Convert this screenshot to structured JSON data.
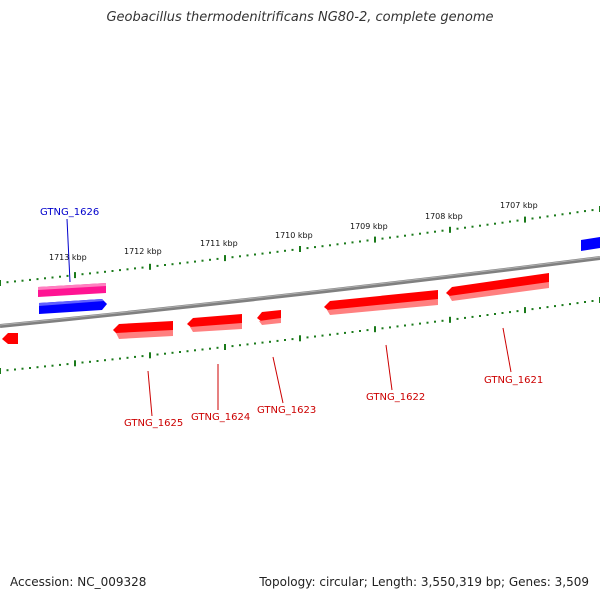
{
  "title": "Geobacillus thermodenitrificans NG80-2, complete genome",
  "footer": {
    "accession": "Accession: NC_009328",
    "topology": "Topology: circular; Length: 3,550,319 bp; Genes: 3,509"
  },
  "scale": {
    "tick_labels": [
      "1713 kbp",
      "1712 kbp",
      "1711 kbp",
      "1710 kbp",
      "1709 kbp",
      "1708 kbp",
      "1707 kbp"
    ]
  },
  "gene_labels": [
    {
      "text": "GTNG_1626",
      "color": "#0000cc"
    },
    {
      "text": "GTNG_1625",
      "color": "#cc0000"
    },
    {
      "text": "GTNG_1624",
      "color": "#cc0000"
    },
    {
      "text": "GTNG_1623",
      "color": "#cc0000"
    },
    {
      "text": "GTNG_1622",
      "color": "#cc0000"
    },
    {
      "text": "GTNG_1621",
      "color": "#cc0000"
    }
  ],
  "colors": {
    "forward_gene": "#0000ff",
    "reverse_gene": "#ff0000",
    "rna_gene": "#ff1493",
    "backbone": "#808080",
    "tick": "#1a7a1a"
  }
}
